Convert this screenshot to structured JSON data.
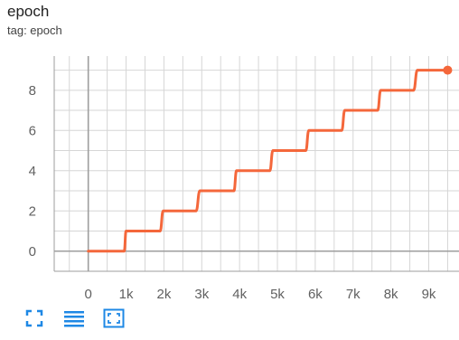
{
  "card": {
    "title": "epoch",
    "tag": "tag: epoch"
  },
  "toolbar": {
    "icons": [
      "expand-icon",
      "toggle-log-icon",
      "fit-domain-icon"
    ]
  },
  "colors": {
    "series": "#f4673b",
    "toolbar_icon": "#1e88e5",
    "grid": "#d6d6d6",
    "axis": "#9e9e9e"
  },
  "chart_data": {
    "type": "line",
    "title": "",
    "xlabel": "",
    "ylabel": "",
    "xlim": [
      -900,
      9800
    ],
    "ylim": [
      -1,
      9.7
    ],
    "grid": true,
    "x_tick_labels": [
      "0",
      "1k",
      "2k",
      "3k",
      "4k",
      "5k",
      "6k",
      "7k",
      "8k",
      "9k"
    ],
    "x_tick_values": [
      0,
      1000,
      2000,
      3000,
      4000,
      5000,
      6000,
      7000,
      8000,
      9000
    ],
    "y_tick_labels": [
      "0",
      "2",
      "4",
      "6",
      "8"
    ],
    "y_tick_values": [
      0,
      2,
      4,
      6,
      8
    ],
    "series": [
      {
        "name": "",
        "x": [
          0,
          950,
          1000,
          1900,
          1980,
          2850,
          2950,
          3850,
          3920,
          4800,
          4880,
          5750,
          5830,
          6700,
          6780,
          7650,
          7730,
          8600,
          8700,
          9500
        ],
        "y": [
          0,
          0,
          1,
          1,
          2,
          2,
          3,
          3,
          4,
          4,
          5,
          5,
          6,
          6,
          7,
          7,
          8,
          8,
          9,
          9
        ]
      }
    ]
  }
}
